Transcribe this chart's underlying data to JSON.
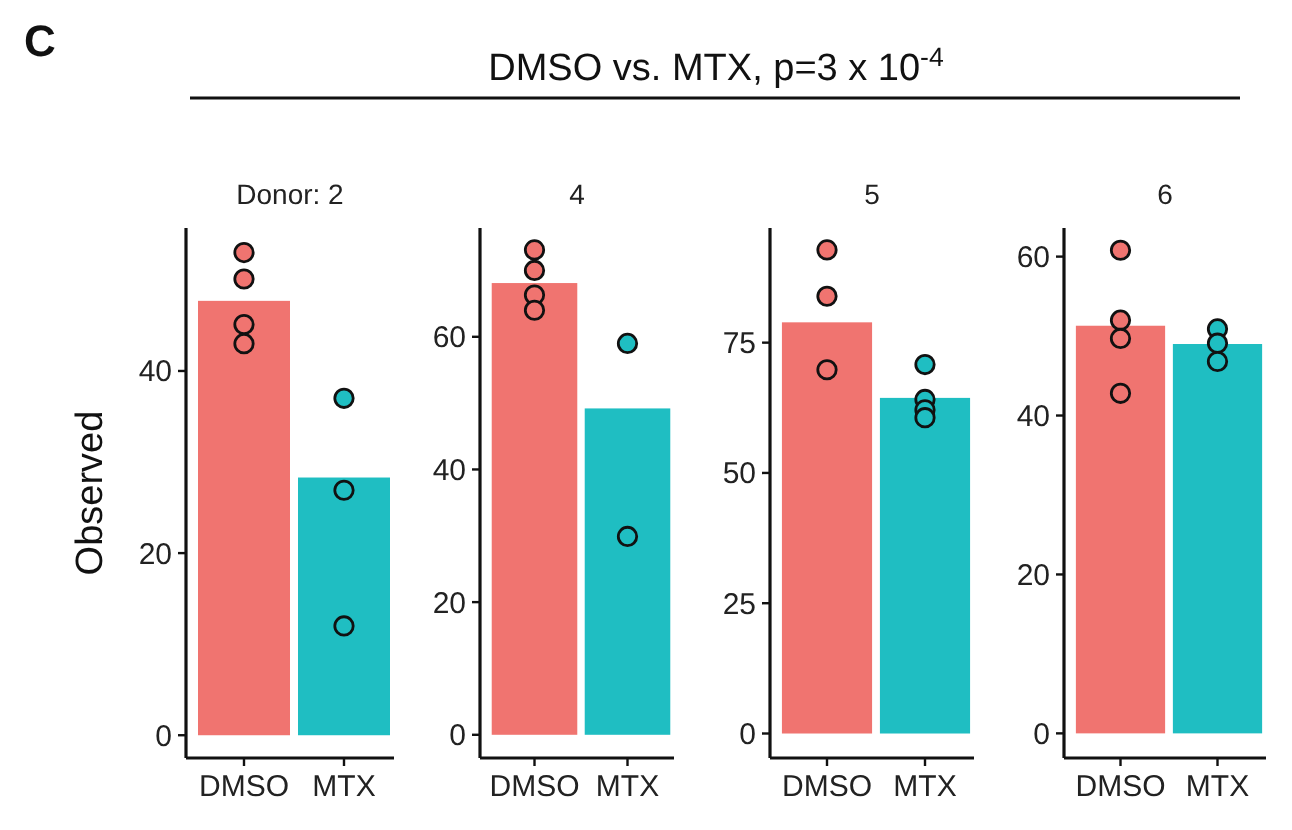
{
  "chart_data": [
    {
      "type": "bar",
      "title": "Donor: 2",
      "ylabel": "Observed",
      "annotations": [
        "C",
        "DMSO vs. MTX, p=3 x 10$^{-4}$"
      ],
      "categories": [
        "DMSO",
        "MTX"
      ],
      "ylim": [
        -2.5,
        55.7
      ],
      "yticks": [
        0,
        20,
        40
      ],
      "grid": false,
      "marker": "circle",
      "series": [
        {
          "colors": [
            "#f07470",
            "#1fbec2"
          ],
          "values": [
            47.7,
            28.3
          ]
        },
        {
          "type": "scatter",
          "x": [
            "DMSO",
            "DMSO",
            "DMSO",
            "DMSO",
            "MTX",
            "MTX",
            "MTX"
          ],
          "colors": [
            "#f07470",
            "#f07470",
            "#f07470",
            "#f07470",
            "#1fbec2",
            "#1fbec2",
            "#1fbec2"
          ],
          "values": [
            53,
            50.1,
            45.1,
            43,
            37,
            26.9,
            12
          ]
        }
      ]
    },
    {
      "type": "bar",
      "title": "4",
      "categories": [
        "DMSO",
        "MTX"
      ],
      "ylim": [
        -3.5,
        76.4
      ],
      "yticks": [
        0,
        20,
        40,
        60
      ],
      "grid": false,
      "marker": "circle",
      "series": [
        {
          "colors": [
            "#f07470",
            "#1fbec2"
          ],
          "values": [
            68.1,
            49.2
          ]
        },
        {
          "type": "scatter",
          "x": [
            "DMSO",
            "DMSO",
            "DMSO",
            "DMSO",
            "MTX",
            "MTX"
          ],
          "colors": [
            "#f07470",
            "#f07470",
            "#f07470",
            "#f07470",
            "#1fbec2",
            "#1fbec2"
          ],
          "values": [
            73.1,
            70,
            66.3,
            64,
            59,
            29.9
          ]
        }
      ]
    },
    {
      "type": "bar",
      "title": "5",
      "categories": [
        "DMSO",
        "MTX"
      ],
      "ylim": [
        -4.7,
        97
      ],
      "yticks": [
        0,
        25,
        50,
        75
      ],
      "grid": false,
      "marker": "circle",
      "series": [
        {
          "colors": [
            "#f07470",
            "#1fbec2"
          ],
          "values": [
            78.9,
            64.4
          ]
        },
        {
          "type": "scatter",
          "x": [
            "DMSO",
            "DMSO",
            "DMSO",
            "MTX",
            "MTX",
            "MTX",
            "MTX"
          ],
          "colors": [
            "#f07470",
            "#f07470",
            "#f07470",
            "#1fbec2",
            "#1fbec2",
            "#1fbec2",
            "#1fbec2"
          ],
          "values": [
            92.8,
            83.9,
            69.8,
            70.8,
            64.1,
            62.1,
            60.6
          ]
        }
      ]
    },
    {
      "type": "bar",
      "title": "6",
      "categories": [
        "DMSO",
        "MTX"
      ],
      "ylim": [
        -3.1,
        63.6
      ],
      "yticks": [
        0,
        20,
        40,
        60
      ],
      "grid": false,
      "marker": "circle",
      "series": [
        {
          "colors": [
            "#f07470",
            "#1fbec2"
          ],
          "values": [
            51.3,
            49
          ]
        },
        {
          "type": "scatter",
          "x": [
            "DMSO",
            "DMSO",
            "DMSO",
            "DMSO",
            "MTX",
            "MTX",
            "MTX"
          ],
          "colors": [
            "#f07470",
            "#f07470",
            "#f07470",
            "#f07470",
            "#1fbec2",
            "#1fbec2",
            "#1fbec2"
          ],
          "values": [
            60.8,
            52,
            49.7,
            42.8,
            50.9,
            49.1,
            46.8
          ]
        }
      ]
    }
  ]
}
